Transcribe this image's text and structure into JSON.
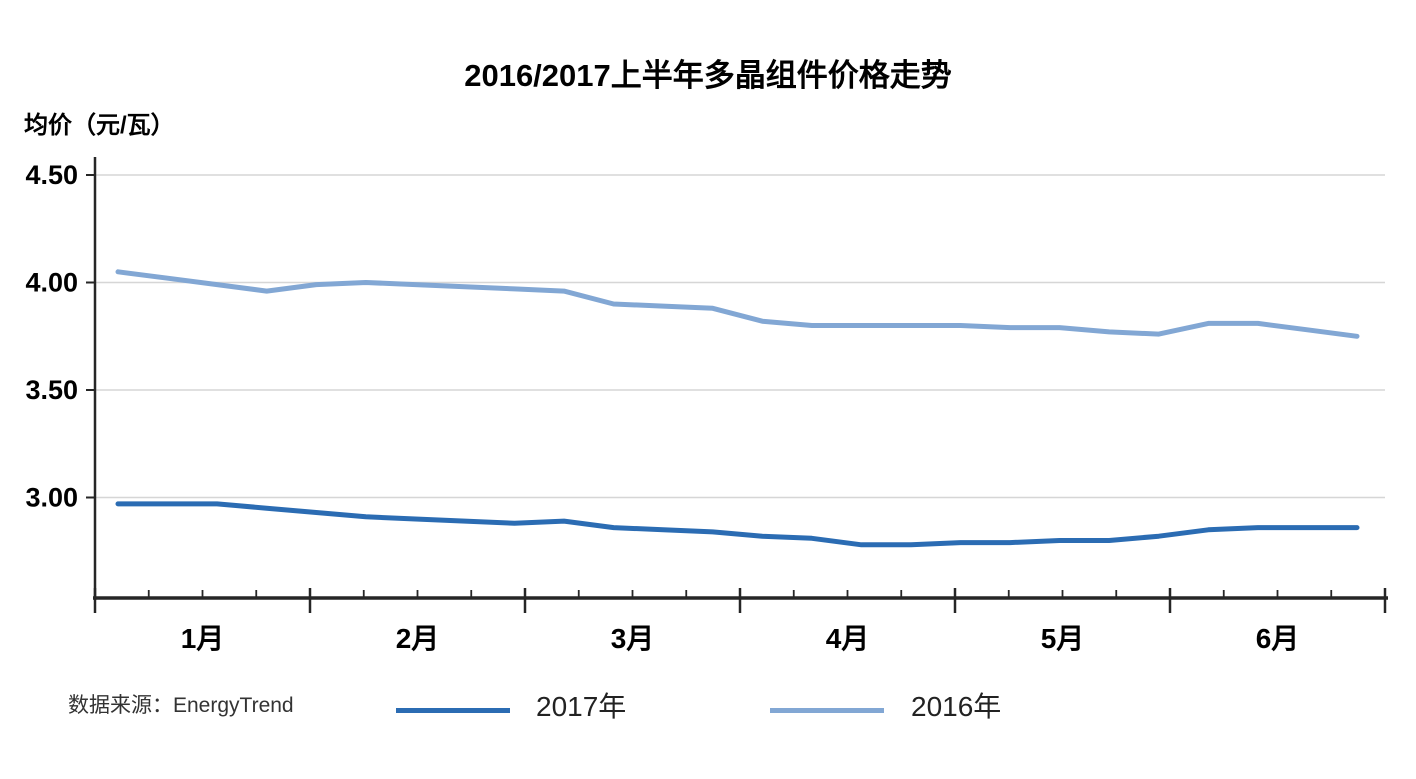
{
  "title": "2016/2017上半年多晶组件价格走势",
  "y_axis_title": "均价（元/瓦）",
  "source": "数据来源：EnergyTrend",
  "chart_data": {
    "type": "line",
    "title": "2016/2017上半年多晶组件价格走势",
    "ylabel": "均价（元/瓦）",
    "x_tick_labels": [
      "1月",
      "2月",
      "3月",
      "4月",
      "5月",
      "6月"
    ],
    "x_sampling": "weekly, 26 points spanning January–June",
    "y_ticks": [
      4.5,
      4.0,
      3.5,
      3.0
    ],
    "ylim": [
      2.53,
      4.58
    ],
    "grid": "horizontal",
    "legend_position": "bottom",
    "colors": {
      "grid": "#D6D6D6",
      "axis": "#262626"
    },
    "series": [
      {
        "key": "2017",
        "name": "2017年",
        "color": "#2B6CB3",
        "values": [
          2.97,
          2.97,
          2.97,
          2.95,
          2.93,
          2.91,
          2.9,
          2.89,
          2.88,
          2.89,
          2.86,
          2.85,
          2.84,
          2.82,
          2.81,
          2.78,
          2.78,
          2.79,
          2.79,
          2.8,
          2.8,
          2.82,
          2.85,
          2.86,
          2.86,
          2.86
        ]
      },
      {
        "key": "2016",
        "name": "2016年",
        "color": "#82A7D4",
        "values": [
          4.05,
          4.02,
          3.99,
          3.96,
          3.99,
          4.0,
          3.99,
          3.98,
          3.97,
          3.96,
          3.9,
          3.89,
          3.88,
          3.82,
          3.8,
          3.8,
          3.8,
          3.8,
          3.79,
          3.79,
          3.77,
          3.76,
          3.81,
          3.81,
          3.78,
          3.75
        ]
      }
    ]
  }
}
